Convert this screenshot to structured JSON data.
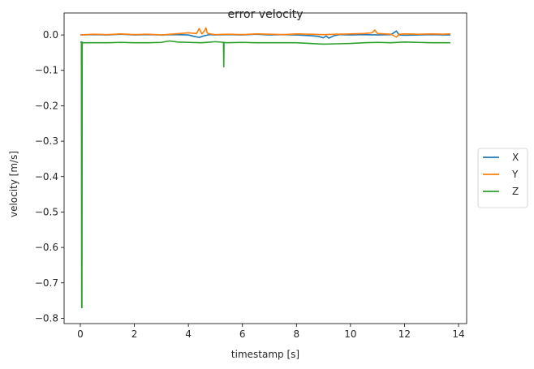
{
  "chart_data": {
    "type": "line",
    "title": "error velocity",
    "xlabel": "timestamp [s]",
    "ylabel": "velocity [m/s]",
    "xlim": [
      -0.6,
      14.3
    ],
    "ylim": [
      -0.815,
      0.062
    ],
    "xticks": [
      0,
      2,
      4,
      6,
      8,
      10,
      12,
      14
    ],
    "xtick_labels": [
      "0",
      "2",
      "4",
      "6",
      "8",
      "10",
      "12",
      "14"
    ],
    "yticks": [
      0.0,
      -0.1,
      -0.2,
      -0.3,
      -0.4,
      -0.5,
      -0.6,
      -0.7,
      -0.8
    ],
    "ytick_labels": [
      "0.0",
      "−0.1",
      "−0.2",
      "−0.3",
      "−0.4",
      "−0.5",
      "−0.6",
      "−0.7",
      "−0.8"
    ],
    "grid": false,
    "legend_position": "outside-right",
    "series": [
      {
        "name": "X",
        "color": "#1f77b4",
        "x": [
          0.0,
          0.5,
          1.0,
          1.5,
          2.0,
          2.5,
          3.0,
          3.5,
          4.0,
          4.2,
          4.4,
          4.6,
          4.8,
          5.0,
          5.5,
          6.0,
          6.5,
          7.0,
          7.5,
          8.0,
          8.5,
          8.8,
          9.0,
          9.1,
          9.2,
          9.4,
          9.6,
          10.0,
          10.5,
          11.0,
          11.5,
          11.7,
          11.8,
          12.0,
          12.5,
          13.0,
          13.5,
          13.7
        ],
        "y": [
          0.0,
          0.001,
          0.0,
          0.002,
          0.0,
          0.001,
          0.0,
          0.001,
          0.0,
          -0.004,
          -0.007,
          -0.002,
          0.001,
          0.0,
          0.001,
          0.0,
          0.002,
          0.0,
          0.001,
          0.0,
          -0.002,
          -0.004,
          -0.008,
          -0.003,
          -0.009,
          -0.002,
          0.001,
          0.0,
          0.001,
          0.0,
          0.001,
          0.011,
          0.0,
          -0.001,
          0.0,
          0.001,
          0.0,
          0.0
        ]
      },
      {
        "name": "Y",
        "color": "#ff7f0e",
        "x": [
          0.0,
          0.5,
          1.0,
          1.5,
          2.0,
          2.5,
          3.0,
          3.5,
          4.0,
          4.3,
          4.4,
          4.5,
          4.6,
          4.65,
          4.7,
          4.8,
          5.0,
          5.5,
          6.0,
          6.5,
          7.0,
          7.5,
          8.0,
          8.5,
          9.0,
          9.5,
          10.0,
          10.5,
          10.8,
          10.9,
          11.0,
          11.5,
          11.7,
          11.8,
          12.0,
          12.5,
          13.0,
          13.5,
          13.7
        ],
        "y": [
          0.0,
          0.002,
          0.001,
          0.003,
          0.001,
          0.002,
          0.0,
          0.003,
          0.006,
          0.004,
          0.018,
          0.003,
          0.012,
          0.02,
          0.005,
          0.003,
          0.001,
          0.002,
          0.001,
          0.003,
          0.002,
          0.001,
          0.003,
          0.002,
          0.001,
          0.002,
          0.003,
          0.004,
          0.006,
          0.014,
          0.004,
          0.002,
          -0.006,
          0.002,
          0.003,
          0.002,
          0.003,
          0.002,
          0.003
        ]
      },
      {
        "name": "Z",
        "color": "#2ca02c",
        "x": [
          0.0,
          0.04,
          0.05,
          0.06,
          0.07,
          0.1,
          0.5,
          1.0,
          1.5,
          2.0,
          2.5,
          3.0,
          3.3,
          3.6,
          4.0,
          4.5,
          5.0,
          5.3,
          5.31,
          5.32,
          5.4,
          6.0,
          6.5,
          7.0,
          7.5,
          8.0,
          8.5,
          9.0,
          9.5,
          10.0,
          10.5,
          11.0,
          11.5,
          12.0,
          12.5,
          13.0,
          13.5,
          13.7
        ],
        "y": [
          -0.02,
          -0.02,
          -0.77,
          -0.77,
          -0.02,
          -0.022,
          -0.022,
          -0.022,
          -0.021,
          -0.022,
          -0.022,
          -0.021,
          -0.017,
          -0.02,
          -0.021,
          -0.022,
          -0.019,
          -0.021,
          -0.09,
          -0.021,
          -0.022,
          -0.021,
          -0.022,
          -0.022,
          -0.022,
          -0.022,
          -0.024,
          -0.026,
          -0.025,
          -0.024,
          -0.022,
          -0.021,
          -0.022,
          -0.02,
          -0.021,
          -0.022,
          -0.022,
          -0.022
        ]
      }
    ]
  }
}
